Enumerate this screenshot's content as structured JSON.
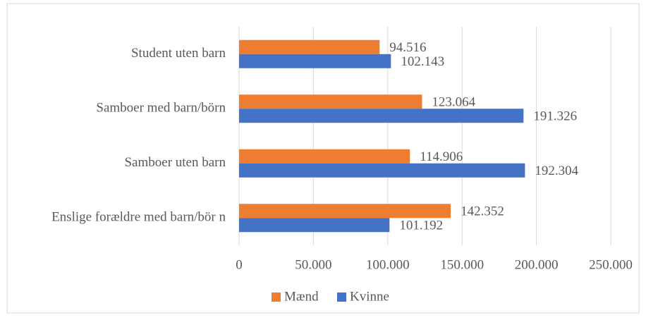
{
  "chart_data": {
    "type": "hbar",
    "categories": [
      "Student uten barn",
      "Samboer med barn/börn",
      "Samboer uten barn",
      "Enslige forældre med barn/bör n"
    ],
    "series": [
      {
        "name": "Mænd",
        "color": "#ed7d31",
        "values": [
          94516,
          123064,
          114906,
          142352
        ],
        "value_labels": [
          "94.516",
          "123.064",
          "114.906",
          "142.352"
        ]
      },
      {
        "name": "Kvinne",
        "color": "#4472c4",
        "values": [
          102143,
          191326,
          192304,
          101192
        ],
        "value_labels": [
          "102.143",
          "191.326",
          "192.304",
          "101.192"
        ]
      }
    ],
    "xlim": [
      0,
      250000
    ],
    "xticks": [
      0,
      {
        "value": 50000,
        "label": "50.000"
      },
      {
        "value": 100000,
        "label": "100.000"
      },
      {
        "value": 150000,
        "label": "150.000"
      },
      {
        "value": 200000,
        "label": "200.000"
      },
      {
        "value": 250000,
        "label": "250.000"
      }
    ],
    "grid": true,
    "legend": "bottom"
  }
}
